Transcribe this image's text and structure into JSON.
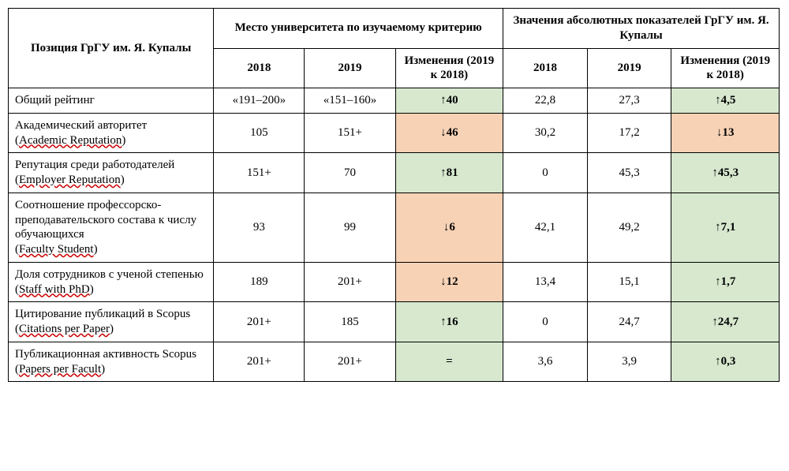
{
  "colors": {
    "border": "#000000",
    "text": "#000000",
    "background": "#ffffff",
    "cell_up": "#d7e8cf",
    "cell_down": "#f7d2b5",
    "squiggle": "#cc0000"
  },
  "typography": {
    "font_family": "Times New Roman",
    "base_fontsize_pt": 12,
    "header_weight": "bold",
    "change_weight": "bold"
  },
  "symbols": {
    "up": "↑",
    "down": "↓",
    "eq": "="
  },
  "header": {
    "row_label": "Позиция ГрГУ им. Я. Купалы",
    "group1": "Место университета по изучаемому критерию",
    "group2": "Значения абсолютных показателей ГрГУ им. Я. Купалы",
    "y2018": "2018",
    "y2019": "2019",
    "change": "Изменения (2019 к 2018)"
  },
  "rows": [
    {
      "label_ru": "Общий рейтинг",
      "label_en": "",
      "rank2018": "«191–200»",
      "rank2019": "«151–160»",
      "rank_change_dir": "up",
      "rank_change_val": "40",
      "val2018": "22,8",
      "val2019": "27,3",
      "val_change_dir": "up",
      "val_change_val": "4,5"
    },
    {
      "label_ru": "Академический авторитет",
      "label_en": "Academic Reputation",
      "rank2018": "105",
      "rank2019": "151+",
      "rank_change_dir": "down",
      "rank_change_val": "46",
      "val2018": "30,2",
      "val2019": "17,2",
      "val_change_dir": "down",
      "val_change_val": "13"
    },
    {
      "label_ru": "Репутация среди работодателей",
      "label_en": "Employer Reputation",
      "rank2018": "151+",
      "rank2019": "70",
      "rank_change_dir": "up",
      "rank_change_val": "81",
      "val2018": "0",
      "val2019": "45,3",
      "val_change_dir": "up",
      "val_change_val": "45,3"
    },
    {
      "label_ru": "Соотношение профессорско-преподавательского состава к числу обучающихся",
      "label_en": "Faculty Student",
      "rank2018": "93",
      "rank2019": "99",
      "rank_change_dir": "down",
      "rank_change_val": "6",
      "val2018": "42,1",
      "val2019": "49,2",
      "val_change_dir": "up",
      "val_change_val": "7,1"
    },
    {
      "label_ru": "Доля сотрудников с ученой степенью",
      "label_en": "Staff with PhD",
      "rank2018": "189",
      "rank2019": "201+",
      "rank_change_dir": "down",
      "rank_change_val": "12",
      "val2018": "13,4",
      "val2019": "15,1",
      "val_change_dir": "up",
      "val_change_val": "1,7"
    },
    {
      "label_ru": "Цитирование публикаций в Scopus",
      "label_en": "Citations per Paper",
      "rank2018": "201+",
      "rank2019": "185",
      "rank_change_dir": "up",
      "rank_change_val": "16",
      "val2018": "0",
      "val2019": "24,7",
      "val_change_dir": "up",
      "val_change_val": "24,7"
    },
    {
      "label_ru": "Публикационная активность Scopus",
      "label_en": "Papers per Facult",
      "rank2018": "201+",
      "rank2019": "201+",
      "rank_change_dir": "eq",
      "rank_change_val": "",
      "val2018": "3,6",
      "val2019": "3,9",
      "val_change_dir": "up",
      "val_change_val": "0,3"
    }
  ]
}
